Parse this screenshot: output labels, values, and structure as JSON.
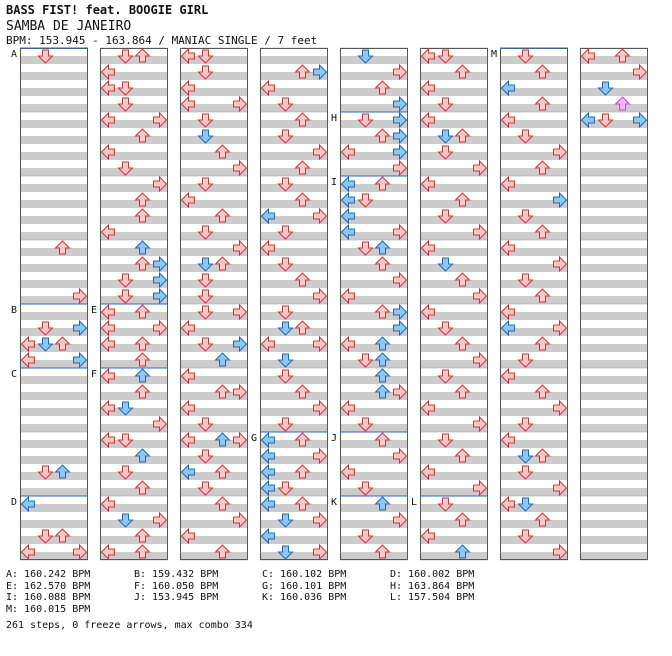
{
  "header": {
    "title": "BASS FIST! feat. BOOGIE GIRL",
    "song": "SAMBA DE JANEIRO",
    "meta": "BPM: 153.945 - 163.864 / MANIAC SINGLE / 7 feet"
  },
  "colors": {
    "stripe": "#cccccc",
    "bg": "#ffffff",
    "border": "#555555",
    "marker_line": "#3366cc",
    "arrow_red_fill": "#ffc8c8",
    "arrow_red_stroke": "#cc3333",
    "arrow_blue_fill": "#8ec8f0",
    "arrow_blue_stroke": "#2266bb",
    "arrow_pink_fill": "#ffb0ff",
    "arrow_pink_stroke": "#cc44cc"
  },
  "bpm_markers": [
    {
      "label": "A",
      "column": 0,
      "row": 0
    },
    {
      "label": "B",
      "column": 0,
      "row": 16
    },
    {
      "label": "C",
      "column": 0,
      "row": 20
    },
    {
      "label": "D",
      "column": 0,
      "row": 28
    },
    {
      "label": "E",
      "column": 1,
      "row": 16
    },
    {
      "label": "F",
      "column": 1,
      "row": 20
    },
    {
      "label": "G",
      "column": 3,
      "row": 24
    },
    {
      "label": "H",
      "column": 4,
      "row": 4
    },
    {
      "label": "I",
      "column": 4,
      "row": 8
    },
    {
      "label": "J",
      "column": 4,
      "row": 24
    },
    {
      "label": "K",
      "column": 4,
      "row": 28
    },
    {
      "label": "L",
      "column": 5,
      "row": 28
    },
    {
      "label": "M",
      "column": 6,
      "row": 0
    }
  ],
  "bpm_legend": [
    "A: 160.242 BPM",
    "B: 159.432 BPM",
    "C: 160.102 BPM",
    "D: 160.002 BPM",
    "E: 162.570 BPM",
    "F: 160.050 BPM",
    "G: 160.101 BPM",
    "H: 163.864 BPM",
    "I: 160.088 BPM",
    "J: 153.945 BPM",
    "K: 160.036 BPM",
    "L: 157.504 BPM",
    "M: 160.015 BPM"
  ],
  "summary": "261 steps, 0 freeze arrows, max combo 334",
  "columns": [
    {
      "rows": [
        [
          0,
          1
        ],
        [
          12,
          2
        ],
        [
          15,
          3
        ],
        [
          17,
          3
        ],
        [
          17,
          1
        ],
        [
          18,
          0
        ],
        [
          18,
          2
        ],
        [
          19,
          0
        ],
        [
          19,
          3
        ],
        [
          26,
          1
        ],
        [
          26,
          2
        ],
        [
          30,
          1
        ],
        [
          30,
          2
        ],
        [
          31,
          0
        ],
        [
          31,
          3
        ]
      ],
      "blue": [
        [
          17,
          3
        ],
        [
          18,
          1
        ],
        [
          19,
          3
        ],
        [
          26,
          2
        ],
        [
          28,
          0
        ]
      ]
    },
    {
      "rows": [
        [
          0,
          2
        ],
        [
          0,
          1
        ],
        [
          1,
          0
        ],
        [
          2,
          1
        ],
        [
          2,
          0
        ],
        [
          3,
          1
        ],
        [
          4,
          0
        ],
        [
          4,
          3
        ],
        [
          5,
          2
        ],
        [
          6,
          0
        ],
        [
          7,
          1
        ],
        [
          8,
          3
        ],
        [
          9,
          2
        ],
        [
          10,
          2
        ],
        [
          11,
          0
        ],
        [
          12,
          2
        ],
        [
          13,
          2
        ],
        [
          14,
          1
        ],
        [
          15,
          1
        ],
        [
          16,
          0
        ],
        [
          16,
          2
        ],
        [
          17,
          0
        ],
        [
          17,
          3
        ],
        [
          18,
          0
        ],
        [
          18,
          2
        ],
        [
          19,
          2
        ],
        [
          20,
          0
        ],
        [
          21,
          2
        ],
        [
          22,
          0
        ],
        [
          22,
          1
        ],
        [
          23,
          3
        ],
        [
          24,
          0
        ],
        [
          24,
          1
        ],
        [
          25,
          2
        ],
        [
          26,
          1
        ],
        [
          27,
          2
        ],
        [
          28,
          0
        ],
        [
          29,
          3
        ],
        [
          30,
          2
        ],
        [
          31,
          0
        ],
        [
          31,
          2
        ]
      ],
      "blue": [
        [
          12,
          2
        ],
        [
          13,
          3
        ],
        [
          14,
          3
        ],
        [
          15,
          3
        ],
        [
          20,
          2
        ],
        [
          22,
          1
        ],
        [
          25,
          2
        ],
        [
          29,
          1
        ]
      ]
    },
    {
      "rows": [
        [
          0,
          0
        ],
        [
          0,
          1
        ],
        [
          1,
          1
        ],
        [
          2,
          0
        ],
        [
          3,
          0
        ],
        [
          3,
          3
        ],
        [
          4,
          1
        ],
        [
          6,
          2
        ],
        [
          7,
          3
        ],
        [
          8,
          1
        ],
        [
          9,
          0
        ],
        [
          10,
          2
        ],
        [
          11,
          1
        ],
        [
          12,
          3
        ],
        [
          13,
          2
        ],
        [
          14,
          1
        ],
        [
          15,
          1
        ],
        [
          16,
          1
        ],
        [
          16,
          3
        ],
        [
          17,
          0
        ],
        [
          18,
          1
        ],
        [
          18,
          3
        ],
        [
          19,
          2
        ],
        [
          20,
          0
        ],
        [
          21,
          2
        ],
        [
          21,
          3
        ],
        [
          22,
          0
        ],
        [
          23,
          1
        ],
        [
          24,
          0
        ],
        [
          24,
          3
        ],
        [
          25,
          1
        ],
        [
          26,
          0
        ],
        [
          26,
          2
        ],
        [
          27,
          1
        ],
        [
          28,
          2
        ],
        [
          29,
          3
        ],
        [
          30,
          0
        ],
        [
          31,
          2
        ]
      ],
      "blue": [
        [
          5,
          1
        ],
        [
          13,
          1
        ],
        [
          18,
          3
        ],
        [
          19,
          2
        ],
        [
          24,
          2
        ],
        [
          26,
          0
        ]
      ]
    },
    {
      "rows": [
        [
          1,
          2
        ],
        [
          1,
          3
        ],
        [
          2,
          0
        ],
        [
          3,
          1
        ],
        [
          4,
          2
        ],
        [
          5,
          1
        ],
        [
          6,
          3
        ],
        [
          7,
          2
        ],
        [
          8,
          1
        ],
        [
          9,
          2
        ],
        [
          10,
          0
        ],
        [
          10,
          3
        ],
        [
          11,
          1
        ],
        [
          12,
          0
        ],
        [
          13,
          1
        ],
        [
          14,
          2
        ],
        [
          15,
          3
        ],
        [
          16,
          1
        ],
        [
          17,
          2
        ],
        [
          18,
          0
        ],
        [
          18,
          3
        ],
        [
          19,
          1
        ],
        [
          20,
          1
        ],
        [
          21,
          2
        ],
        [
          22,
          3
        ],
        [
          23,
          1
        ],
        [
          24,
          2
        ],
        [
          25,
          3
        ],
        [
          26,
          2
        ],
        [
          27,
          1
        ],
        [
          28,
          2
        ],
        [
          29,
          3
        ],
        [
          30,
          0
        ],
        [
          31,
          3
        ]
      ],
      "blue": [
        [
          1,
          3
        ],
        [
          10,
          0
        ],
        [
          17,
          1
        ],
        [
          19,
          1
        ],
        [
          24,
          0
        ],
        [
          25,
          0
        ],
        [
          26,
          0
        ],
        [
          27,
          0
        ],
        [
          28,
          0
        ],
        [
          29,
          1
        ],
        [
          30,
          0
        ],
        [
          31,
          1
        ]
      ]
    },
    {
      "rows": [
        [
          0,
          1
        ],
        [
          1,
          3
        ],
        [
          2,
          2
        ],
        [
          3,
          3
        ],
        [
          4,
          1
        ],
        [
          5,
          2
        ],
        [
          6,
          0
        ],
        [
          7,
          3
        ],
        [
          8,
          2
        ],
        [
          9,
          1
        ],
        [
          10,
          0
        ],
        [
          11,
          3
        ],
        [
          12,
          1
        ],
        [
          13,
          2
        ],
        [
          14,
          3
        ],
        [
          15,
          0
        ],
        [
          16,
          2
        ],
        [
          17,
          3
        ],
        [
          18,
          0
        ],
        [
          19,
          1
        ],
        [
          20,
          2
        ],
        [
          21,
          3
        ],
        [
          22,
          0
        ],
        [
          23,
          1
        ],
        [
          24,
          2
        ],
        [
          25,
          3
        ],
        [
          26,
          0
        ],
        [
          27,
          1
        ],
        [
          28,
          2
        ],
        [
          29,
          3
        ],
        [
          30,
          1
        ],
        [
          31,
          2
        ]
      ],
      "blue": [
        [
          0,
          1
        ],
        [
          3,
          3
        ],
        [
          4,
          3
        ],
        [
          5,
          3
        ],
        [
          6,
          3
        ],
        [
          8,
          0
        ],
        [
          9,
          0
        ],
        [
          10,
          0
        ],
        [
          11,
          0
        ],
        [
          12,
          2
        ],
        [
          16,
          3
        ],
        [
          17,
          3
        ],
        [
          18,
          2
        ],
        [
          19,
          2
        ],
        [
          20,
          2
        ],
        [
          21,
          2
        ],
        [
          28,
          2
        ]
      ]
    },
    {
      "rows": [
        [
          0,
          0
        ],
        [
          0,
          1
        ],
        [
          1,
          2
        ],
        [
          2,
          0
        ],
        [
          3,
          1
        ],
        [
          4,
          0
        ],
        [
          5,
          2
        ],
        [
          6,
          1
        ],
        [
          7,
          3
        ],
        [
          8,
          0
        ],
        [
          9,
          2
        ],
        [
          10,
          1
        ],
        [
          11,
          3
        ],
        [
          12,
          0
        ],
        [
          13,
          1
        ],
        [
          14,
          2
        ],
        [
          15,
          3
        ],
        [
          16,
          0
        ],
        [
          17,
          1
        ],
        [
          18,
          2
        ],
        [
          19,
          3
        ],
        [
          20,
          1
        ],
        [
          21,
          2
        ],
        [
          22,
          0
        ],
        [
          23,
          3
        ],
        [
          24,
          1
        ],
        [
          25,
          2
        ],
        [
          26,
          0
        ],
        [
          27,
          3
        ],
        [
          28,
          1
        ],
        [
          29,
          2
        ],
        [
          30,
          0
        ],
        [
          31,
          2
        ]
      ],
      "blue": [
        [
          5,
          1
        ],
        [
          13,
          1
        ],
        [
          31,
          2
        ]
      ]
    },
    {
      "rows": [
        [
          0,
          1
        ],
        [
          1,
          2
        ],
        [
          2,
          0
        ],
        [
          3,
          2
        ],
        [
          4,
          0
        ],
        [
          5,
          1
        ],
        [
          6,
          3
        ],
        [
          7,
          2
        ],
        [
          8,
          0
        ],
        [
          9,
          3
        ],
        [
          10,
          1
        ],
        [
          11,
          2
        ],
        [
          12,
          0
        ],
        [
          13,
          3
        ],
        [
          14,
          1
        ],
        [
          15,
          2
        ],
        [
          16,
          0
        ],
        [
          17,
          3
        ],
        [
          18,
          2
        ],
        [
          19,
          1
        ],
        [
          20,
          0
        ],
        [
          21,
          2
        ],
        [
          22,
          3
        ],
        [
          23,
          1
        ],
        [
          24,
          0
        ],
        [
          25,
          2
        ],
        [
          26,
          1
        ],
        [
          27,
          3
        ],
        [
          28,
          0
        ],
        [
          29,
          2
        ],
        [
          30,
          1
        ],
        [
          31,
          3
        ]
      ],
      "blue": [
        [
          2,
          0
        ],
        [
          9,
          3
        ],
        [
          17,
          0
        ],
        [
          25,
          1
        ],
        [
          28,
          1
        ]
      ]
    },
    {
      "rows": [
        [
          0,
          0
        ],
        [
          0,
          2
        ],
        [
          1,
          3
        ],
        [
          2,
          1
        ],
        [
          3,
          2
        ],
        [
          4,
          0
        ],
        [
          4,
          1
        ],
        [
          4,
          3
        ]
      ],
      "blue": [
        [
          2,
          1
        ],
        [
          4,
          0
        ],
        [
          4,
          3
        ]
      ],
      "pink": [
        [
          3,
          2
        ]
      ]
    }
  ]
}
